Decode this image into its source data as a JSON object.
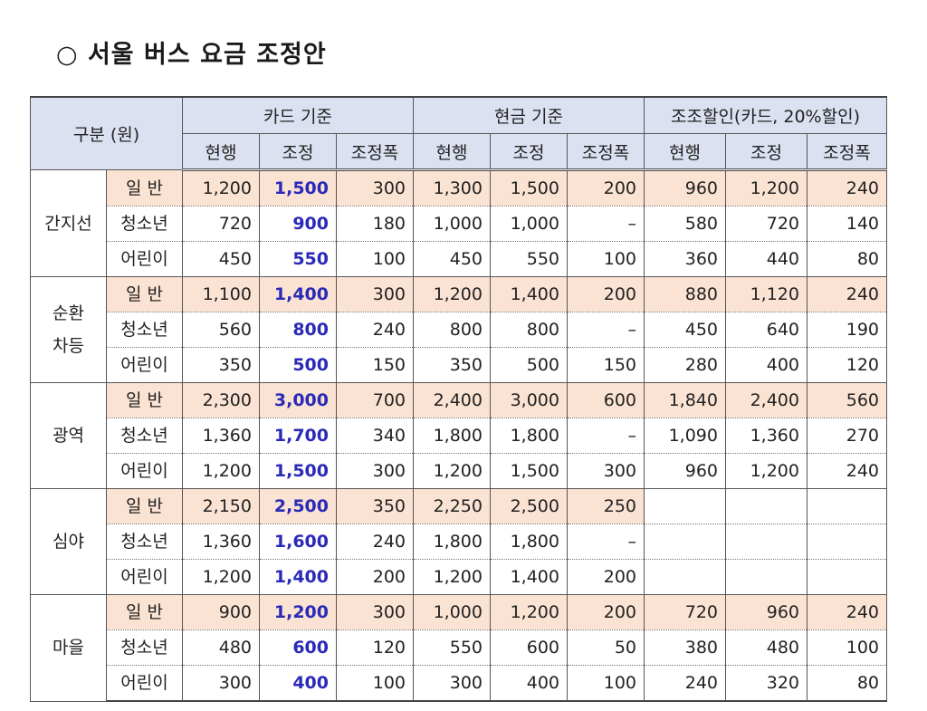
{
  "title": "○ 서울 버스 요금 조정안",
  "table": {
    "header_corner": "구분 (원)",
    "groups": [
      "카드 기준",
      "현금 기준",
      "조조할인(카드, 20%할인)"
    ],
    "subheaders": [
      "현행",
      "조정",
      "조정폭",
      "현행",
      "조정",
      "조정폭",
      "현행",
      "조정",
      "조정폭"
    ],
    "sections": [
      {
        "name": "간지선",
        "rows": [
          {
            "label": "일 반",
            "values": [
              "1,200",
              "1,500",
              "300",
              "1,300",
              "1,500",
              "200",
              "960",
              "1,200",
              "240"
            ]
          },
          {
            "label": "청소년",
            "values": [
              "720",
              "900",
              "180",
              "1,000",
              "1,000",
              "–",
              "580",
              "720",
              "140"
            ]
          },
          {
            "label": "어린이",
            "values": [
              "450",
              "550",
              "100",
              "450",
              "550",
              "100",
              "360",
              "440",
              "80"
            ]
          }
        ]
      },
      {
        "name": "순환\n차등",
        "rows": [
          {
            "label": "일 반",
            "values": [
              "1,100",
              "1,400",
              "300",
              "1,200",
              "1,400",
              "200",
              "880",
              "1,120",
              "240"
            ]
          },
          {
            "label": "청소년",
            "values": [
              "560",
              "800",
              "240",
              "800",
              "800",
              "–",
              "450",
              "640",
              "190"
            ]
          },
          {
            "label": "어린이",
            "values": [
              "350",
              "500",
              "150",
              "350",
              "500",
              "150",
              "280",
              "400",
              "120"
            ]
          }
        ]
      },
      {
        "name": "광역",
        "rows": [
          {
            "label": "일 반",
            "values": [
              "2,300",
              "3,000",
              "700",
              "2,400",
              "3,000",
              "600",
              "1,840",
              "2,400",
              "560"
            ]
          },
          {
            "label": "청소년",
            "values": [
              "1,360",
              "1,700",
              "340",
              "1,800",
              "1,800",
              "–",
              "1,090",
              "1,360",
              "270"
            ]
          },
          {
            "label": "어린이",
            "values": [
              "1,200",
              "1,500",
              "300",
              "1,200",
              "1,500",
              "300",
              "960",
              "1,200",
              "240"
            ]
          }
        ]
      },
      {
        "name": "심야",
        "rows": [
          {
            "label": "일 반",
            "values": [
              "2,150",
              "2,500",
              "350",
              "2,250",
              "2,500",
              "250",
              "",
              "",
              ""
            ]
          },
          {
            "label": "청소년",
            "values": [
              "1,360",
              "1,600",
              "240",
              "1,800",
              "1,800",
              "–",
              "",
              "",
              ""
            ]
          },
          {
            "label": "어린이",
            "values": [
              "1,200",
              "1,400",
              "200",
              "1,200",
              "1,400",
              "200",
              "",
              "",
              ""
            ]
          }
        ]
      },
      {
        "name": "마을",
        "rows": [
          {
            "label": "일 반",
            "values": [
              "900",
              "1,200",
              "300",
              "1,000",
              "1,200",
              "200",
              "720",
              "960",
              "240"
            ]
          },
          {
            "label": "청소년",
            "values": [
              "480",
              "600",
              "120",
              "550",
              "600",
              "50",
              "380",
              "480",
              "100"
            ]
          },
          {
            "label": "어린이",
            "values": [
              "300",
              "400",
              "100",
              "300",
              "400",
              "100",
              "240",
              "320",
              "80"
            ]
          }
        ]
      }
    ]
  },
  "colors": {
    "header_bg": "#dce1f1",
    "general_row_bg": "#fbe3d3",
    "adjusted_card_text": "#2a2ab8"
  }
}
